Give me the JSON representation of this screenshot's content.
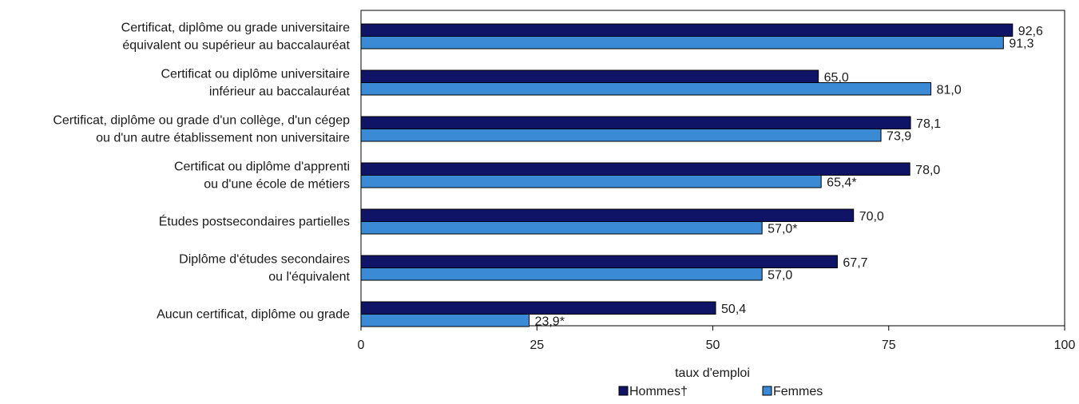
{
  "chart_data": {
    "type": "bar",
    "orientation": "horizontal",
    "categories": [
      [
        "Certificat, diplôme ou grade universitaire",
        "équivalent ou supérieur au baccalauréat"
      ],
      [
        "Certificat ou diplôme universitaire",
        "inférieur au baccalauréat"
      ],
      [
        "Certificat, diplôme ou grade d'un collège, d'un cégep",
        "ou d'un autre établissement non universitaire"
      ],
      [
        "Certificat ou diplôme d'apprenti",
        "ou d'une école de métiers"
      ],
      [
        "Études postsecondaires partielles"
      ],
      [
        "Diplôme d'études secondaires",
        "ou l'équivalent"
      ],
      [
        "Aucun certificat, diplôme ou grade"
      ]
    ],
    "series": [
      {
        "name": "Hommes†",
        "color": "#101466",
        "values": [
          92.6,
          65.0,
          78.1,
          78.0,
          70.0,
          67.7,
          50.4
        ],
        "labels": [
          "92,6",
          "65,0",
          "78,1",
          "78,0",
          "70,0",
          "67,7",
          "50,4"
        ]
      },
      {
        "name": "Femmes",
        "color": "#3a8ad6",
        "values": [
          91.3,
          81.0,
          73.9,
          65.4,
          57.0,
          57.0,
          23.9
        ],
        "labels": [
          "91,3",
          "81,0",
          "73,9",
          "65,4*",
          "57,0*",
          "57,0",
          "23,9*"
        ]
      }
    ],
    "xlabel": "taux d'emploi",
    "xlim": [
      0,
      100
    ],
    "xticks": [
      0,
      25,
      50,
      75,
      100
    ],
    "xtick_labels": [
      "0",
      "25",
      "50",
      "75",
      "100"
    ],
    "grid": false,
    "legend_position": "bottom-center"
  }
}
